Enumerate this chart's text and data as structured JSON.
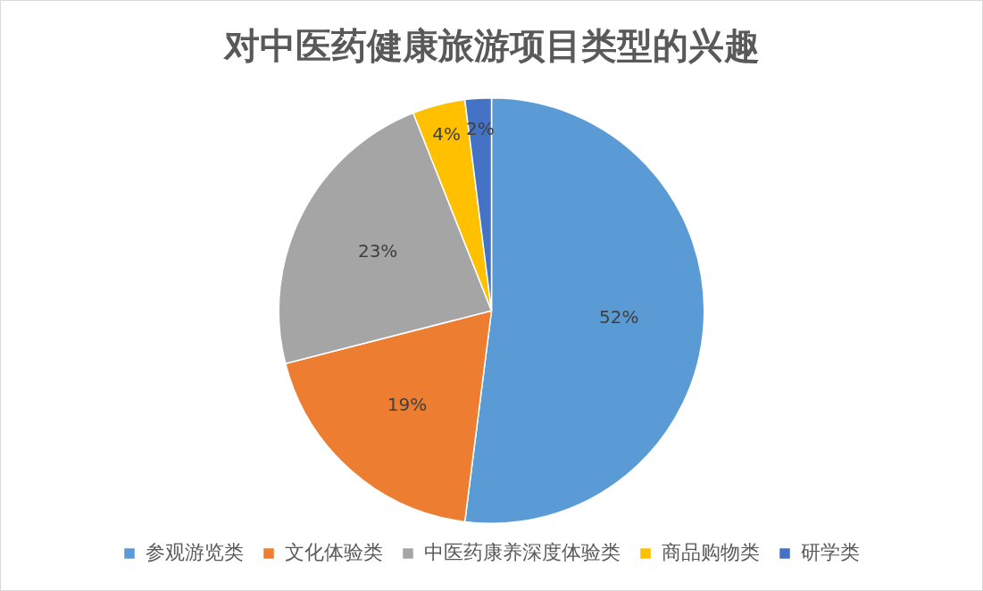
{
  "chart_data": {
    "type": "pie",
    "title": "对中医药健康旅游项目类型的兴趣",
    "categories": [
      "参观游览类",
      "文化体验类",
      "中医药康养深度体验类",
      "商品购物类",
      "研学类"
    ],
    "values": [
      52,
      19,
      23,
      4,
      2
    ],
    "colors": [
      "#5b9bd5",
      "#ed7d31",
      "#a5a5a5",
      "#ffc000",
      "#4472c4"
    ],
    "value_labels": [
      "52%",
      "19%",
      "23%",
      "4%",
      "2%"
    ],
    "legend": "bottom"
  }
}
